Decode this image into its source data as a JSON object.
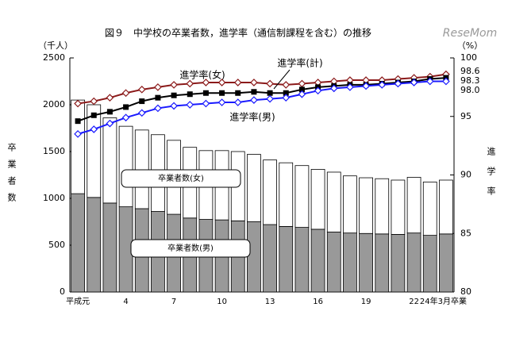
{
  "chart_data": {
    "type": "bar_line",
    "title": "図９　中学校の卒業者数，進学率（通信制課程を含む）の推移",
    "logo": "ReseMom",
    "y_axis_unit": "（千人）",
    "y_axis_label": "卒業者数",
    "y2_axis_unit": "（%）",
    "y2_axis_label": "進学率",
    "categories": [
      "平成元",
      null,
      null,
      "4",
      null,
      null,
      "7",
      null,
      null,
      "10",
      null,
      null,
      "13",
      null,
      null,
      "16",
      null,
      null,
      "19",
      null,
      null,
      "22",
      null,
      "24年3月卒業"
    ],
    "ylim": [
      0,
      2500
    ],
    "yticks": [
      0,
      500,
      1000,
      1500,
      2000,
      2500
    ],
    "y2lim": [
      80,
      100
    ],
    "y2ticks": [
      80,
      85,
      90,
      95,
      100
    ],
    "series": [
      {
        "name": "卒業者数(男)",
        "type": "bar",
        "color": "#999999",
        "values": [
          1050,
          1010,
          950,
          910,
          890,
          860,
          830,
          790,
          775,
          770,
          760,
          750,
          720,
          700,
          690,
          670,
          640,
          630,
          625,
          620,
          615,
          630,
          605,
          620
        ]
      },
      {
        "name": "卒業者数(女)",
        "type": "bar",
        "color": "#ffffff",
        "values": [
          1000,
          990,
          910,
          860,
          840,
          820,
          790,
          755,
          735,
          740,
          740,
          720,
          690,
          680,
          660,
          640,
          640,
          610,
          595,
          590,
          580,
          595,
          570,
          575
        ]
      },
      {
        "name": "進学率(女)",
        "type": "line",
        "axis": "y2",
        "color": "#8b1a1a",
        "marker": "diamond",
        "values": [
          96.1,
          96.3,
          96.6,
          97.0,
          97.3,
          97.5,
          97.7,
          97.8,
          97.9,
          97.9,
          97.9,
          97.9,
          97.8,
          97.7,
          97.8,
          97.9,
          98.0,
          98.1,
          98.1,
          98.1,
          98.2,
          98.3,
          98.4,
          98.6
        ],
        "value_labels": [
          null,
          null,
          null,
          null,
          null,
          null,
          null,
          null,
          null,
          null,
          null,
          null,
          null,
          null,
          null,
          null,
          null,
          null,
          null,
          null,
          null,
          null,
          null,
          "98.6"
        ]
      },
      {
        "name": "進学率(計)",
        "type": "line",
        "axis": "y2",
        "color": "#000000",
        "marker": "square",
        "values": [
          94.6,
          95.1,
          95.4,
          95.8,
          96.3,
          96.6,
          96.8,
          96.9,
          97.0,
          97.0,
          97.0,
          97.1,
          97.0,
          97.0,
          97.3,
          97.5,
          97.6,
          97.7,
          97.7,
          97.8,
          97.9,
          98.0,
          98.2,
          98.3
        ],
        "value_labels": [
          null,
          null,
          null,
          null,
          null,
          null,
          null,
          null,
          null,
          null,
          null,
          null,
          null,
          null,
          null,
          null,
          null,
          null,
          null,
          null,
          null,
          null,
          null,
          "98.3"
        ]
      },
      {
        "name": "進学率(男)",
        "type": "line",
        "axis": "y2",
        "color": "#1a1aff",
        "marker": "diamond",
        "values": [
          93.5,
          93.9,
          94.4,
          94.9,
          95.3,
          95.7,
          95.9,
          96.0,
          96.1,
          96.2,
          96.2,
          96.4,
          96.5,
          96.6,
          96.9,
          97.2,
          97.4,
          97.5,
          97.6,
          97.7,
          97.8,
          97.9,
          98.0,
          98.0
        ],
        "value_labels": [
          null,
          null,
          null,
          null,
          null,
          null,
          null,
          null,
          null,
          null,
          null,
          null,
          null,
          null,
          null,
          null,
          null,
          null,
          null,
          null,
          null,
          null,
          null,
          "98.0"
        ]
      }
    ]
  }
}
